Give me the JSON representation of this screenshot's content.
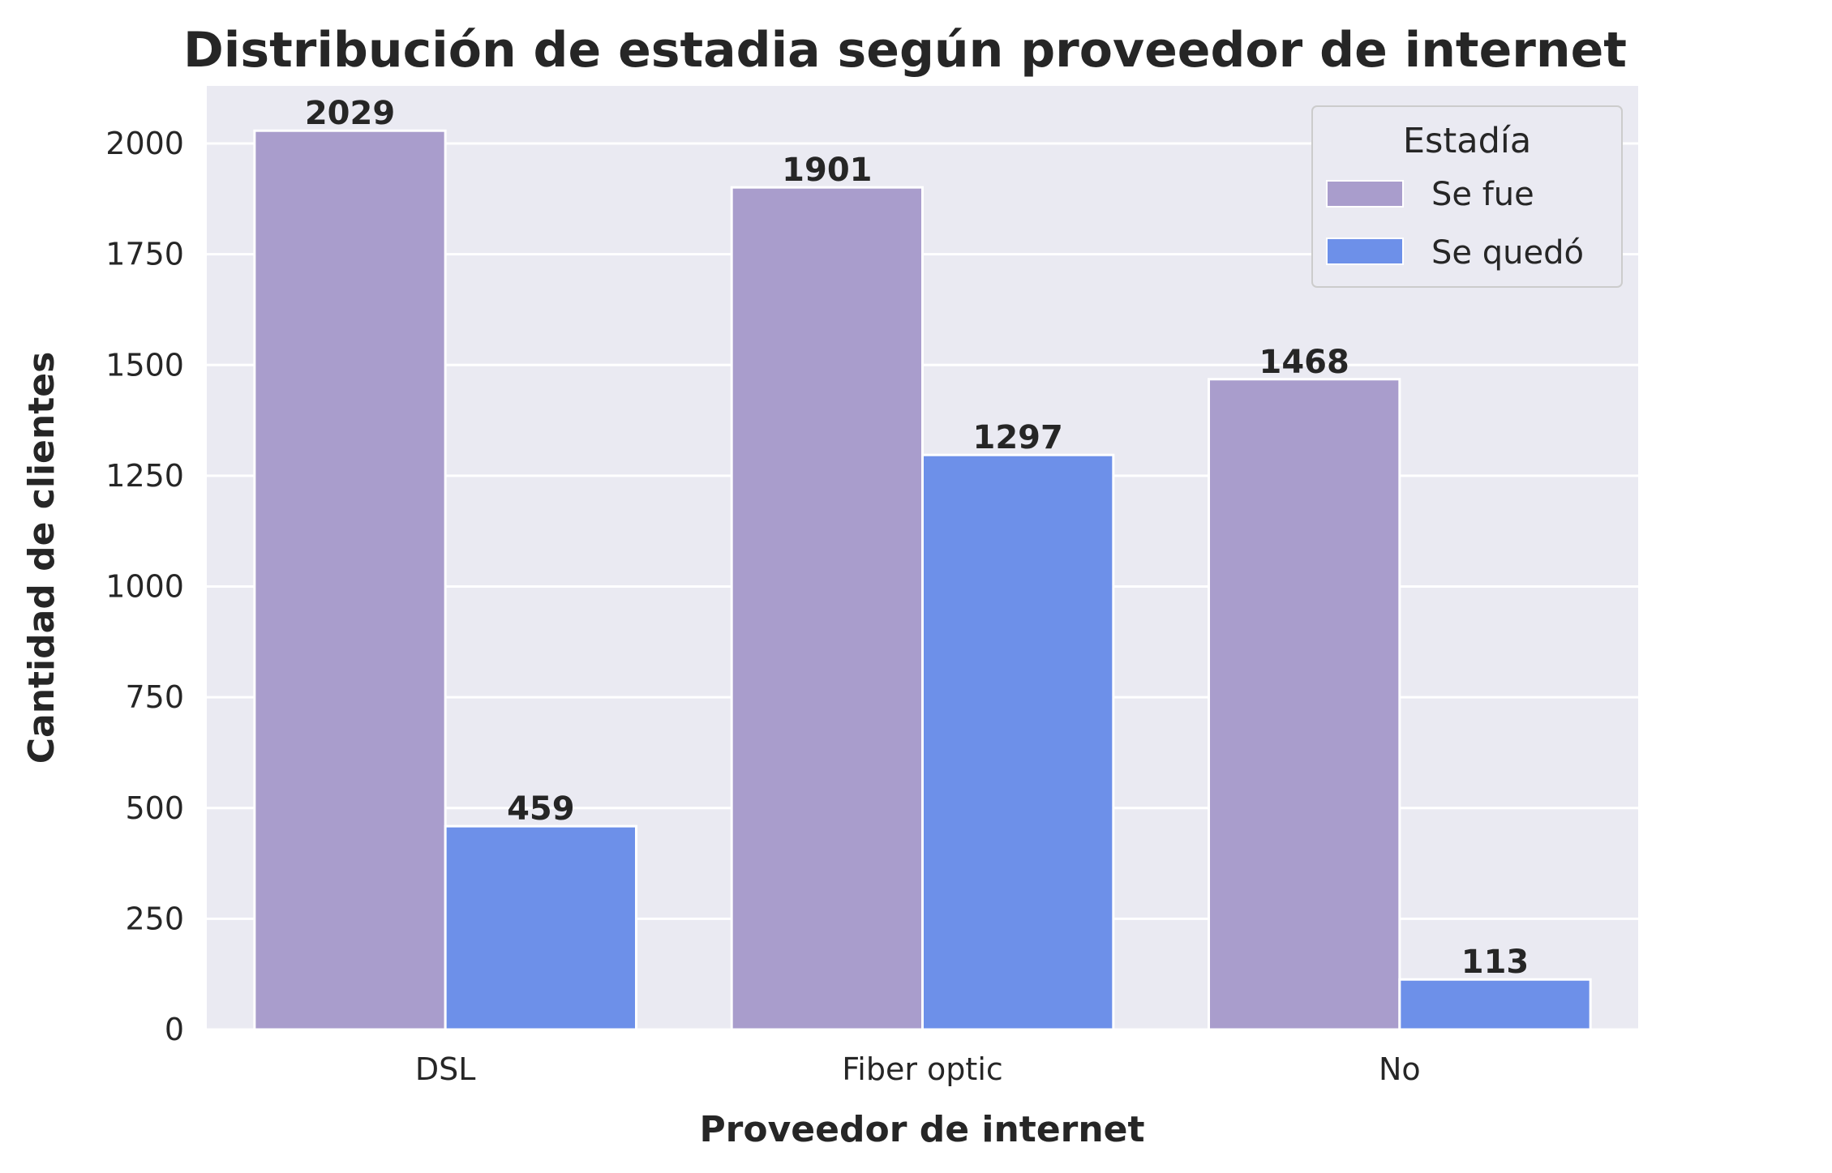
{
  "chart_data": {
    "type": "bar",
    "title": "Distribución de estadia según proveedor de internet",
    "xlabel": "Proveedor de internet",
    "ylabel": "Cantidad de clientes",
    "categories": [
      "DSL",
      "Fiber optic",
      "No"
    ],
    "series": [
      {
        "name": "Se fue",
        "values": [
          2029,
          1901,
          1468
        ],
        "color": "#a99dcc"
      },
      {
        "name": "Se quedó",
        "values": [
          459,
          1297,
          113
        ],
        "color": "#6d90e9"
      }
    ],
    "ylim": [
      0,
      2130
    ],
    "yticks": [
      0,
      250,
      500,
      750,
      1000,
      1250,
      1500,
      1750,
      2000
    ],
    "grid": true,
    "legend": {
      "title": "Estadía",
      "position": "top-right"
    },
    "colors": {
      "plot_background": "#eaeaf2",
      "grid": "#ffffff",
      "bar_edge": "#ffffff"
    }
  }
}
